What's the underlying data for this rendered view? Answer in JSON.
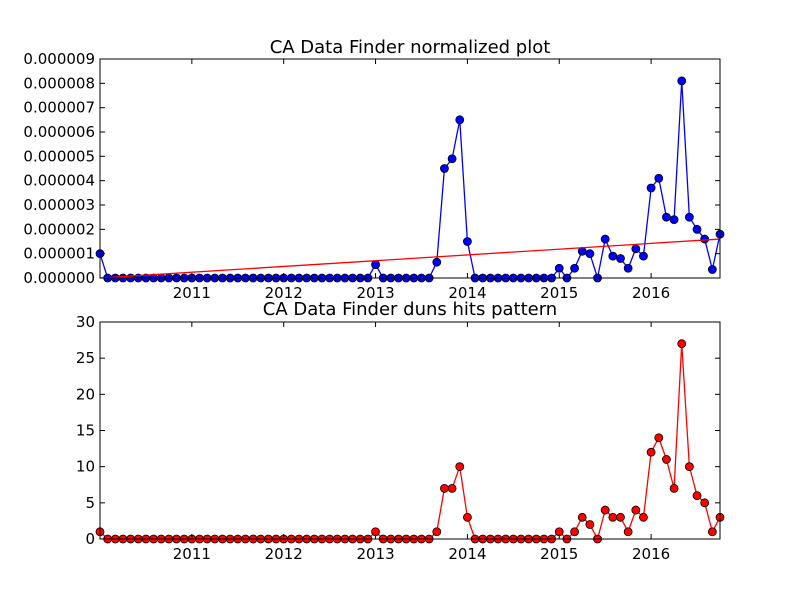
{
  "chart_data": [
    {
      "type": "line",
      "title": "CA Data Finder normalized plot",
      "xlabel": "",
      "ylabel": "",
      "xlim": [
        "2010-01",
        "2016-10"
      ],
      "ylim": [
        0,
        9e-06
      ],
      "x_ticks": [
        "2011",
        "2012",
        "2013",
        "2014",
        "2015",
        "2016"
      ],
      "y_ticks": [
        "0.000000",
        "0.000001",
        "0.000002",
        "0.000003",
        "0.000004",
        "0.000005",
        "0.000006",
        "0.000007",
        "0.000008",
        "0.000009"
      ],
      "grid": false,
      "series": [
        {
          "color": "#0000ff",
          "marker": "circle",
          "x": [
            "2010-01",
            "2010-02",
            "2010-03",
            "2010-04",
            "2010-05",
            "2010-06",
            "2010-07",
            "2010-08",
            "2010-09",
            "2010-10",
            "2010-11",
            "2010-12",
            "2011-01",
            "2011-02",
            "2011-03",
            "2011-04",
            "2011-05",
            "2011-06",
            "2011-07",
            "2011-08",
            "2011-09",
            "2011-10",
            "2011-11",
            "2011-12",
            "2012-01",
            "2012-02",
            "2012-03",
            "2012-04",
            "2012-05",
            "2012-06",
            "2012-07",
            "2012-08",
            "2012-09",
            "2012-10",
            "2012-11",
            "2012-12",
            "2013-01",
            "2013-02",
            "2013-03",
            "2013-04",
            "2013-05",
            "2013-06",
            "2013-07",
            "2013-08",
            "2013-09",
            "2013-10",
            "2013-11",
            "2013-12",
            "2014-01",
            "2014-02",
            "2014-03",
            "2014-04",
            "2014-05",
            "2014-06",
            "2014-07",
            "2014-08",
            "2014-09",
            "2014-10",
            "2014-11",
            "2014-12",
            "2015-01",
            "2015-02",
            "2015-03",
            "2015-04",
            "2015-05",
            "2015-06",
            "2015-07",
            "2015-08",
            "2015-09",
            "2015-10",
            "2015-11",
            "2015-12",
            "2016-01",
            "2016-02",
            "2016-03",
            "2016-04",
            "2016-05",
            "2016-06",
            "2016-07",
            "2016-08",
            "2016-09",
            "2016-10"
          ],
          "values": [
            1e-06,
            0,
            0,
            0,
            0,
            0,
            0,
            0,
            0,
            0,
            0,
            0,
            0,
            0,
            0,
            0,
            0,
            0,
            0,
            0,
            0,
            0,
            0,
            0,
            0,
            0,
            0,
            0,
            0,
            0,
            0,
            0,
            0,
            0,
            0,
            0,
            5.5e-07,
            0,
            0,
            0,
            0,
            0,
            0,
            0,
            6.5e-07,
            4.5e-06,
            4.9e-06,
            6.5e-06,
            1.5e-06,
            0,
            0,
            0,
            0,
            0,
            0,
            0,
            0,
            0,
            0,
            0,
            4e-07,
            0,
            4e-07,
            1.1e-06,
            1e-06,
            0,
            1.6e-06,
            9e-07,
            8e-07,
            4e-07,
            1.2e-06,
            9e-07,
            3.7e-06,
            4.1e-06,
            2.5e-06,
            2.4e-06,
            8.1e-06,
            2.5e-06,
            2e-06,
            1.6e-06,
            3.5e-07,
            1.8e-06
          ]
        },
        {
          "name": "trend",
          "color": "#ff0000",
          "marker": "none",
          "x": [
            "2010-01",
            "2016-10"
          ],
          "values": [
            0,
            1.6e-06
          ]
        }
      ]
    },
    {
      "type": "line",
      "title": "CA Data Finder duns hits pattern",
      "xlabel": "",
      "ylabel": "",
      "xlim": [
        "2010-01",
        "2016-10"
      ],
      "ylim": [
        0,
        30
      ],
      "x_ticks": [
        "2011",
        "2012",
        "2013",
        "2014",
        "2015",
        "2016"
      ],
      "y_ticks": [
        "0",
        "5",
        "10",
        "15",
        "20",
        "25",
        "30"
      ],
      "grid": false,
      "series": [
        {
          "color": "#ff0000",
          "marker": "circle",
          "x": [
            "2010-01",
            "2010-02",
            "2010-03",
            "2010-04",
            "2010-05",
            "2010-06",
            "2010-07",
            "2010-08",
            "2010-09",
            "2010-10",
            "2010-11",
            "2010-12",
            "2011-01",
            "2011-02",
            "2011-03",
            "2011-04",
            "2011-05",
            "2011-06",
            "2011-07",
            "2011-08",
            "2011-09",
            "2011-10",
            "2011-11",
            "2011-12",
            "2012-01",
            "2012-02",
            "2012-03",
            "2012-04",
            "2012-05",
            "2012-06",
            "2012-07",
            "2012-08",
            "2012-09",
            "2012-10",
            "2012-11",
            "2012-12",
            "2013-01",
            "2013-02",
            "2013-03",
            "2013-04",
            "2013-05",
            "2013-06",
            "2013-07",
            "2013-08",
            "2013-09",
            "2013-10",
            "2013-11",
            "2013-12",
            "2014-01",
            "2014-02",
            "2014-03",
            "2014-04",
            "2014-05",
            "2014-06",
            "2014-07",
            "2014-08",
            "2014-09",
            "2014-10",
            "2014-11",
            "2014-12",
            "2015-01",
            "2015-02",
            "2015-03",
            "2015-04",
            "2015-05",
            "2015-06",
            "2015-07",
            "2015-08",
            "2015-09",
            "2015-10",
            "2015-11",
            "2015-12",
            "2016-01",
            "2016-02",
            "2016-03",
            "2016-04",
            "2016-05",
            "2016-06",
            "2016-07",
            "2016-08",
            "2016-09",
            "2016-10"
          ],
          "values": [
            1,
            0,
            0,
            0,
            0,
            0,
            0,
            0,
            0,
            0,
            0,
            0,
            0,
            0,
            0,
            0,
            0,
            0,
            0,
            0,
            0,
            0,
            0,
            0,
            0,
            0,
            0,
            0,
            0,
            0,
            0,
            0,
            0,
            0,
            0,
            0,
            1,
            0,
            0,
            0,
            0,
            0,
            0,
            0,
            1,
            7,
            7,
            10,
            3,
            0,
            0,
            0,
            0,
            0,
            0,
            0,
            0,
            0,
            0,
            0,
            1,
            0,
            1,
            3,
            2,
            0,
            4,
            3,
            3,
            1,
            4,
            3,
            12,
            14,
            11,
            7,
            27,
            10,
            6,
            5,
            1,
            3
          ]
        }
      ]
    }
  ]
}
